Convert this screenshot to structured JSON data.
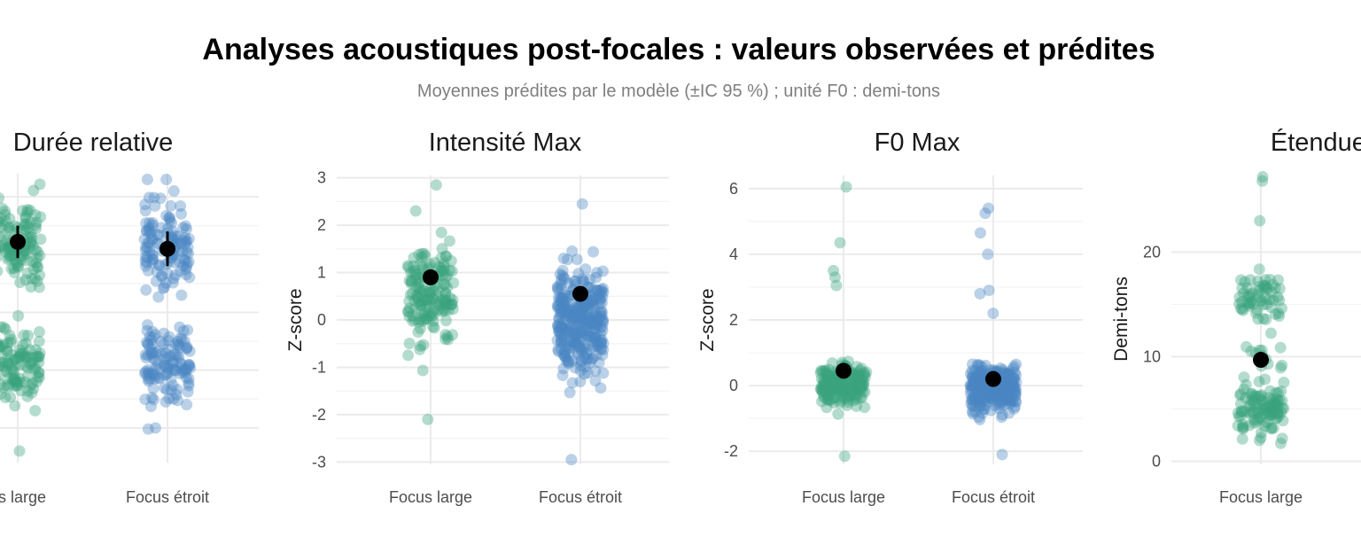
{
  "title": "Analyses acoustiques post-focales : valeurs observées et prédites",
  "subtitle": "Moyennes prédites par le modèle (±IC 95 %) ; unité F0 : demi-tons",
  "colors": {
    "focus_large": "#3aa37d",
    "focus_etroit": "#4a86c2",
    "mean": "#000000"
  },
  "chart_data": [
    {
      "type": "scatter",
      "title": "Durée relative",
      "ylabel": "",
      "categories": [
        "us large",
        "Focus étroit"
      ],
      "ylim": [
        -1.05,
        1.45
      ],
      "yticks": [],
      "clusters": [
        {
          "category": 0,
          "center": 0.85,
          "spread": 0.35,
          "n": 120
        },
        {
          "category": 0,
          "center": -0.2,
          "spread": 0.3,
          "n": 110
        },
        {
          "category": 1,
          "center": 0.85,
          "spread": 0.35,
          "n": 120
        },
        {
          "category": 1,
          "center": -0.2,
          "spread": 0.3,
          "n": 120
        }
      ],
      "outliers": [
        {
          "category": 0,
          "y": 0.47
        },
        {
          "category": 0,
          "y": -0.95
        },
        {
          "category": 1,
          "y": 1.3
        }
      ],
      "means": [
        {
          "category": 0,
          "y": 0.86,
          "lo": 0.72,
          "hi": 1.0
        },
        {
          "category": 1,
          "y": 0.8,
          "lo": 0.65,
          "hi": 0.95
        }
      ]
    },
    {
      "type": "scatter",
      "title": "Intensité Max",
      "ylabel": "Z-score",
      "categories": [
        "Focus large",
        "Focus étroit"
      ],
      "ylim": [
        -3.05,
        3.05
      ],
      "yticks": [
        3,
        2,
        1,
        0,
        -1,
        -2,
        -3
      ],
      "clusters": [
        {
          "category": 0,
          "center": 0.5,
          "spread": 1.0,
          "n": 160
        },
        {
          "category": 1,
          "center": -0.1,
          "spread": 1.05,
          "n": 320
        }
      ],
      "outliers": [
        {
          "category": 0,
          "y": 2.85
        },
        {
          "category": 0,
          "y": -2.1
        },
        {
          "category": 1,
          "y": 2.45
        },
        {
          "category": 1,
          "y": -2.95
        }
      ],
      "means": [
        {
          "category": 0,
          "y": 0.9,
          "lo": 0.87,
          "hi": 0.93
        },
        {
          "category": 1,
          "y": 0.55,
          "lo": 0.52,
          "hi": 0.58
        }
      ]
    },
    {
      "type": "scatter",
      "title": "F0 Max",
      "ylabel": "Z-score",
      "categories": [
        "Focus large",
        "Focus étroit"
      ],
      "ylim": [
        -2.4,
        6.4
      ],
      "yticks": [
        6,
        4,
        2,
        0,
        -2
      ],
      "clusters": [
        {
          "category": 0,
          "center": 0.0,
          "spread": 0.6,
          "n": 180
        },
        {
          "category": 1,
          "center": -0.1,
          "spread": 0.6,
          "n": 300
        }
      ],
      "outliers": [
        {
          "category": 0,
          "y": 6.05
        },
        {
          "category": 0,
          "y": 4.35
        },
        {
          "category": 0,
          "y": 3.5
        },
        {
          "category": 0,
          "y": 3.3
        },
        {
          "category": 0,
          "y": 3.05
        },
        {
          "category": 0,
          "y": -2.15
        },
        {
          "category": 1,
          "y": 5.4
        },
        {
          "category": 1,
          "y": 5.25
        },
        {
          "category": 1,
          "y": 4.65
        },
        {
          "category": 1,
          "y": 4.0
        },
        {
          "category": 1,
          "y": 2.9
        },
        {
          "category": 1,
          "y": 2.8
        },
        {
          "category": 1,
          "y": 2.2
        },
        {
          "category": 1,
          "y": -2.1
        }
      ],
      "means": [
        {
          "category": 0,
          "y": 0.45,
          "lo": 0.4,
          "hi": 0.5
        },
        {
          "category": 1,
          "y": 0.2,
          "lo": 0.15,
          "hi": 0.25
        }
      ]
    },
    {
      "type": "scatter",
      "title": "Étendue d",
      "ylabel": "Demi-tons",
      "categories": [
        "Focus large",
        ""
      ],
      "ylim": [
        -0.3,
        27.5
      ],
      "yticks": [
        20,
        10,
        0
      ],
      "clusters": [
        {
          "category": 0,
          "center": 15.5,
          "spread": 2.0,
          "n": 60
        },
        {
          "category": 0,
          "center": 5.0,
          "spread": 2.3,
          "n": 110
        },
        {
          "category": 0,
          "center": 10.0,
          "spread": 1.5,
          "n": 12
        }
      ],
      "outliers": [
        {
          "category": 0,
          "y": 27.2
        },
        {
          "category": 0,
          "y": 26.8
        },
        {
          "category": 0,
          "y": 23.0
        }
      ],
      "means": [
        {
          "category": 0,
          "y": 9.7,
          "lo": 9.4,
          "hi": 10.0
        }
      ]
    }
  ]
}
